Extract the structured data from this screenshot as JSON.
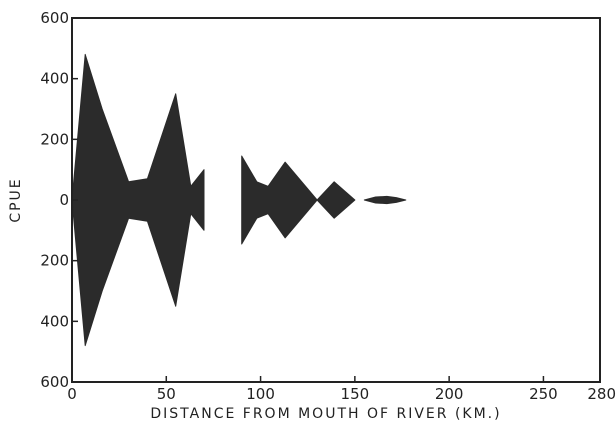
{
  "chart_data": {
    "type": "area",
    "title": "",
    "xlabel": "DISTANCE FROM MOUTH OF RIVER (KM.)",
    "ylabel": "CPUE",
    "xlim": [
      0,
      280
    ],
    "ylim": [
      -600,
      600
    ],
    "x_ticks": [
      0,
      50,
      100,
      150,
      200,
      250,
      280
    ],
    "x_tick_labels": [
      "0",
      "50",
      "100",
      "150",
      "200",
      "250",
      "280"
    ],
    "y_ticks": [
      600,
      400,
      200,
      0,
      -200,
      -400,
      -600
    ],
    "y_tick_labels": [
      "600",
      "400",
      "200",
      "0",
      "200",
      "400",
      "600"
    ],
    "grid": false,
    "fill_color": "#2b2b2b",
    "series": [
      {
        "values": [
          {
            "x": 0,
            "y": 0
          },
          {
            "x": 7,
            "y": 480
          },
          {
            "x": 16,
            "y": 300
          },
          {
            "x": 30,
            "y": 60
          },
          {
            "x": 40,
            "y": 70
          },
          {
            "x": 55,
            "y": 350
          },
          {
            "x": 63,
            "y": 45
          },
          {
            "x": 70,
            "y": 100
          },
          {
            "x": 70,
            "y": 0
          }
        ]
      },
      {
        "values": [
          {
            "x": 90,
            "y": 0
          },
          {
            "x": 90,
            "y": 145
          },
          {
            "x": 98,
            "y": 60
          },
          {
            "x": 104,
            "y": 45
          },
          {
            "x": 113,
            "y": 125
          },
          {
            "x": 130,
            "y": 0
          },
          {
            "x": 139,
            "y": 60
          },
          {
            "x": 150,
            "y": 0
          }
        ]
      },
      {
        "values": [
          {
            "x": 155,
            "y": 0
          },
          {
            "x": 161,
            "y": 10
          },
          {
            "x": 167,
            "y": 12
          },
          {
            "x": 172,
            "y": 8
          },
          {
            "x": 177,
            "y": 0
          }
        ]
      }
    ]
  }
}
